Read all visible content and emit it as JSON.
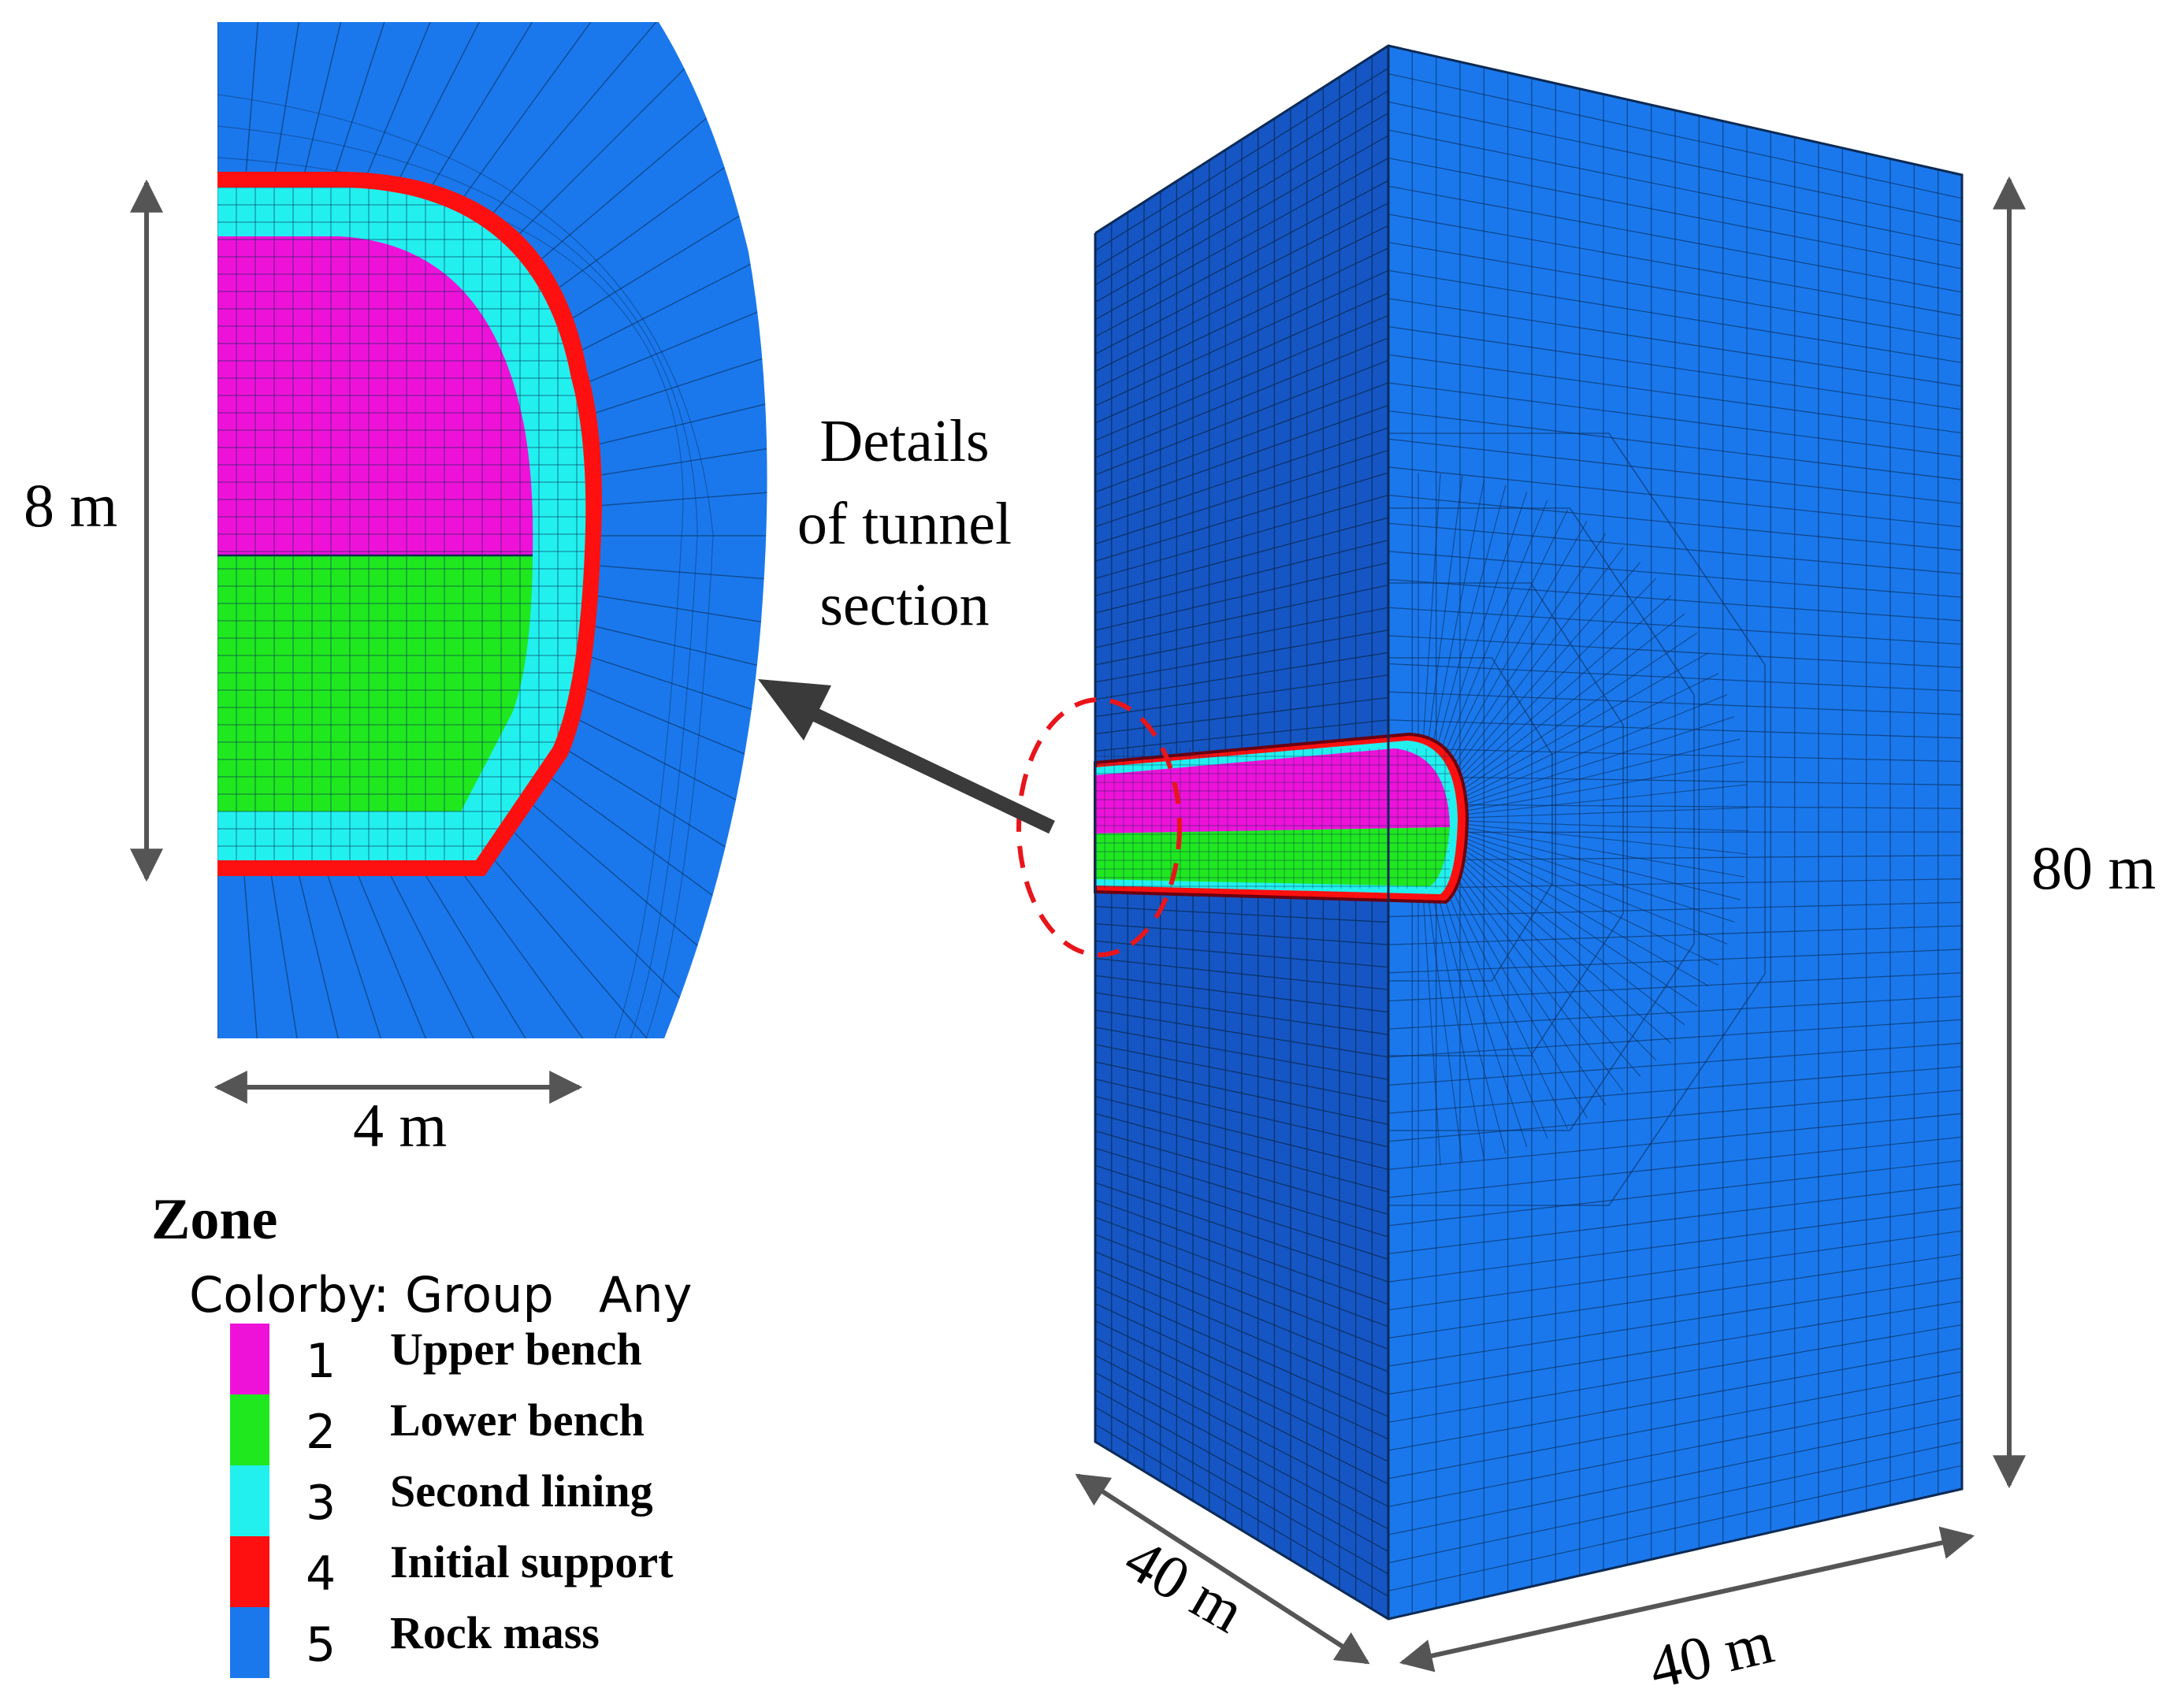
{
  "colors": {
    "upper_bench": "#ee12d9",
    "lower_bench": "#1fe81f",
    "second_lining": "#22f0ee",
    "initial_support": "#ff1010",
    "rock_mass": "#1a78ec",
    "rock_mass_dark": "#1556c4",
    "mesh_line": "#0b2a55",
    "callout_ring": "#e8151b",
    "arrow": "#3a3a3a"
  },
  "section": {
    "height_label": "8 m",
    "width_label": "4 m",
    "callout": [
      "Details",
      "of tunnel",
      "section"
    ]
  },
  "model": {
    "height_label": "80 m",
    "depth_label": "40 m",
    "width_label": "40 m"
  },
  "legend": {
    "title": "Zone",
    "colorby": "Colorby: Group",
    "any": "Any",
    "items": [
      {
        "num": "1",
        "name": "Upper bench",
        "color": "#ee12d9"
      },
      {
        "num": "2",
        "name": "Lower bench",
        "color": "#1fe81f"
      },
      {
        "num": "3",
        "name": "Second lining",
        "color": "#22f0ee"
      },
      {
        "num": "4",
        "name": "Initial support",
        "color": "#ff1010"
      },
      {
        "num": "5",
        "name": "Rock mass",
        "color": "#1a78ec"
      }
    ]
  }
}
